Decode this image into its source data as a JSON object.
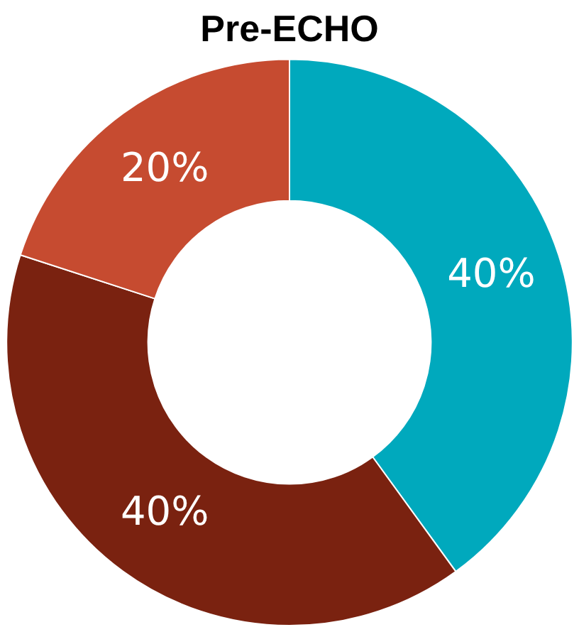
{
  "chart_data": {
    "type": "donut",
    "title": "Pre-ECHO",
    "categories": [
      null,
      null,
      null
    ],
    "values": [
      40,
      40,
      20
    ],
    "colors": [
      "#00a9bd",
      "#7a2210",
      "#c64b30"
    ],
    "value_labels": [
      "40%",
      "40%",
      "20%"
    ]
  }
}
